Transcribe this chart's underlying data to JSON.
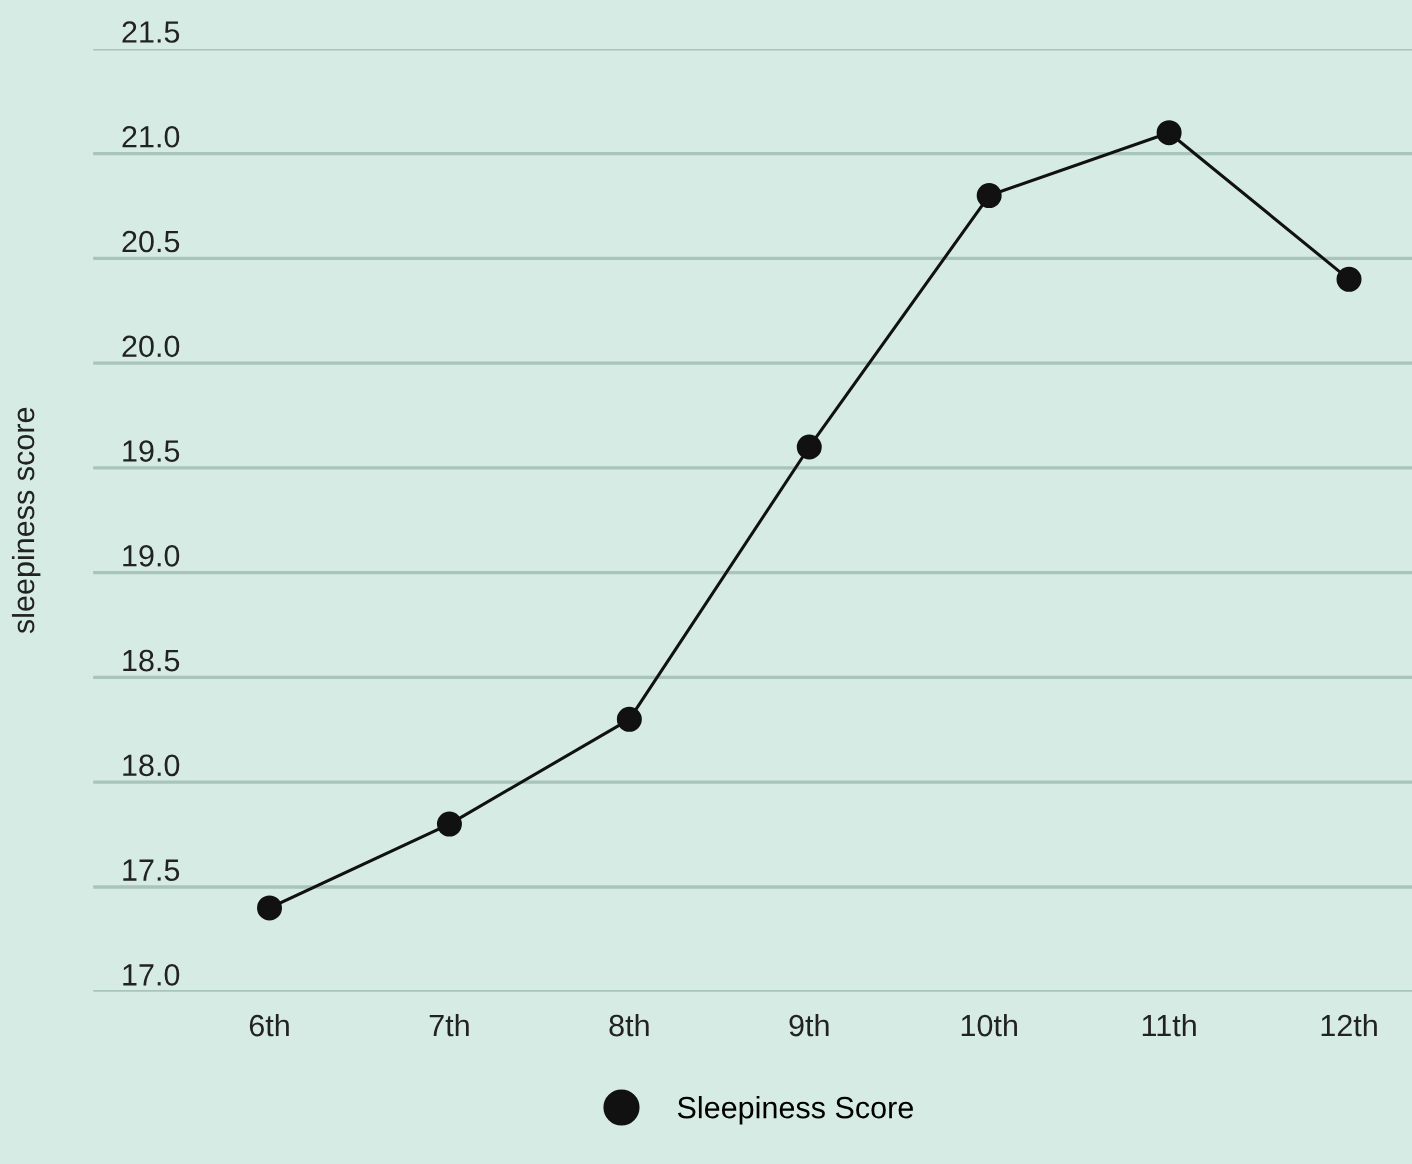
{
  "chart_data": {
    "type": "line",
    "ylabel": "sleepiness score",
    "categories": [
      "6th",
      "7th",
      "8th",
      "9th",
      "10th",
      "11th",
      "12th"
    ],
    "series": [
      {
        "name": "Sleepiness Score",
        "color": "#111111",
        "values": [
          17.4,
          17.8,
          18.3,
          19.6,
          20.8,
          21.1,
          20.4
        ]
      }
    ],
    "ylim": [
      17.0,
      21.5
    ],
    "yticks": [
      {
        "value": 17.0,
        "label": "17.0"
      },
      {
        "value": 17.5,
        "label": "17.5"
      },
      {
        "value": 18.0,
        "label": "18.0"
      },
      {
        "value": 18.5,
        "label": "18.5"
      },
      {
        "value": 19.0,
        "label": "19.0"
      },
      {
        "value": 19.5,
        "label": "19.5"
      },
      {
        "value": 20.0,
        "label": "20.0"
      },
      {
        "value": 20.5,
        "label": "20.5"
      },
      {
        "value": 21.0,
        "label": "21.0"
      },
      {
        "value": 21.5,
        "label": "21.5"
      }
    ],
    "grid": "y",
    "legend": "bottom",
    "marker": "circle",
    "line_style": "solid"
  }
}
